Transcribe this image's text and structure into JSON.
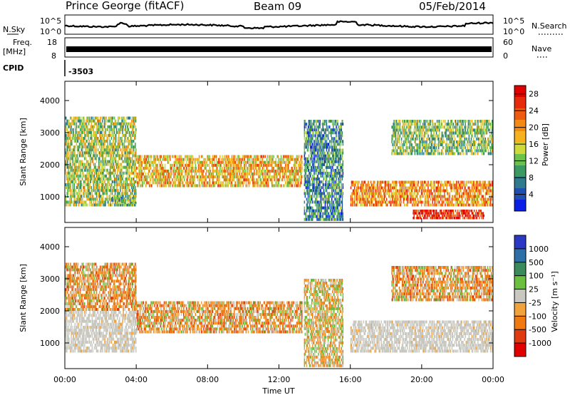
{
  "header": {
    "station": "Prince George (fitACF)",
    "beam": "Beam 09",
    "date": "05/Feb/2014"
  },
  "status_panels": {
    "nsky": {
      "label": "N.Sky",
      "right_label": "N.Search",
      "left_ticks": [
        "10^5",
        "10^0"
      ],
      "right_ticks": [
        "10^5",
        "10^0"
      ]
    },
    "freq": {
      "label_top": "Freq.",
      "label_unit": "[MHz]",
      "left_ticks": [
        "18",
        "8"
      ],
      "right_ticks": [
        "60",
        "0"
      ],
      "right_label": "Nave"
    },
    "cpid": {
      "label": "CPID",
      "value": "-3503"
    }
  },
  "chart_data": [
    {
      "type": "heatmap",
      "name": "power",
      "ylabel": "Slant Range [km]",
      "yticks": [
        1000,
        2000,
        3000,
        4000
      ],
      "ylim": [
        200,
        4600
      ],
      "colorbar_label": "Power [dB]",
      "colorbar_ticks": [
        4,
        8,
        12,
        16,
        20,
        24,
        28
      ],
      "colorbar_range": [
        0,
        30
      ],
      "colors": [
        "#0a1ee6",
        "#1f4fb0",
        "#2f7a8c",
        "#3a9a62",
        "#6cc24a",
        "#cfd93a",
        "#f5b21e",
        "#f28a14",
        "#ee5a10",
        "#e82a0c",
        "#e00000"
      ],
      "echo_regions": [
        {
          "t0": 0.0,
          "t1": 4.0,
          "r0": 700,
          "r1": 3500,
          "level": 0.45
        },
        {
          "t0": 4.0,
          "t1": 13.3,
          "r0": 1300,
          "r1": 2300,
          "level": 0.62
        },
        {
          "t0": 2.6,
          "t1": 4.0,
          "r0": 700,
          "r1": 1000,
          "level": 0.35
        },
        {
          "t0": 13.4,
          "t1": 15.6,
          "r0": 250,
          "r1": 3400,
          "level": 0.25
        },
        {
          "t0": 16.0,
          "t1": 24.0,
          "r0": 700,
          "r1": 1500,
          "level": 0.7
        },
        {
          "t0": 18.3,
          "t1": 24.0,
          "r0": 2300,
          "r1": 3400,
          "level": 0.4
        },
        {
          "t0": 19.5,
          "t1": 23.5,
          "r0": 300,
          "r1": 600,
          "level": 0.92
        }
      ]
    },
    {
      "type": "heatmap",
      "name": "velocity",
      "ylabel": "Slant Range [km]",
      "yticks": [
        1000,
        2000,
        3000,
        4000
      ],
      "ylim": [
        200,
        4600
      ],
      "colorbar_label": "Velocity [m s⁻¹]",
      "colorbar_ticks": [
        "1000",
        "500",
        "100",
        "25",
        "-25",
        "-100",
        "-500",
        "-1000"
      ],
      "colors": [
        "#2a38c4",
        "#2f6fa8",
        "#3a8a5c",
        "#6cc040",
        "#c8c8c0",
        "#f2a23a",
        "#f07a10",
        "#e23a10",
        "#e00000"
      ],
      "ground_scatter": "#c8c8c0",
      "echo_regions": [
        {
          "t0": 0.0,
          "t1": 4.0,
          "r0": 2000,
          "r1": 3500,
          "kind": "neg"
        },
        {
          "t0": 0.0,
          "t1": 4.0,
          "r0": 700,
          "r1": 2000,
          "kind": "gs"
        },
        {
          "t0": 4.0,
          "t1": 13.3,
          "r0": 1300,
          "r1": 2300,
          "kind": "neg"
        },
        {
          "t0": 13.4,
          "t1": 15.6,
          "r0": 250,
          "r1": 3000,
          "kind": "mix"
        },
        {
          "t0": 16.0,
          "t1": 24.0,
          "r0": 700,
          "r1": 1700,
          "kind": "gs"
        },
        {
          "t0": 18.3,
          "t1": 24.0,
          "r0": 2300,
          "r1": 3400,
          "kind": "neg"
        }
      ]
    }
  ],
  "x_axis": {
    "ticks": [
      "00:00",
      "04:00",
      "08:00",
      "12:00",
      "16:00",
      "20:00",
      "00:00"
    ],
    "label": "Time UT"
  }
}
